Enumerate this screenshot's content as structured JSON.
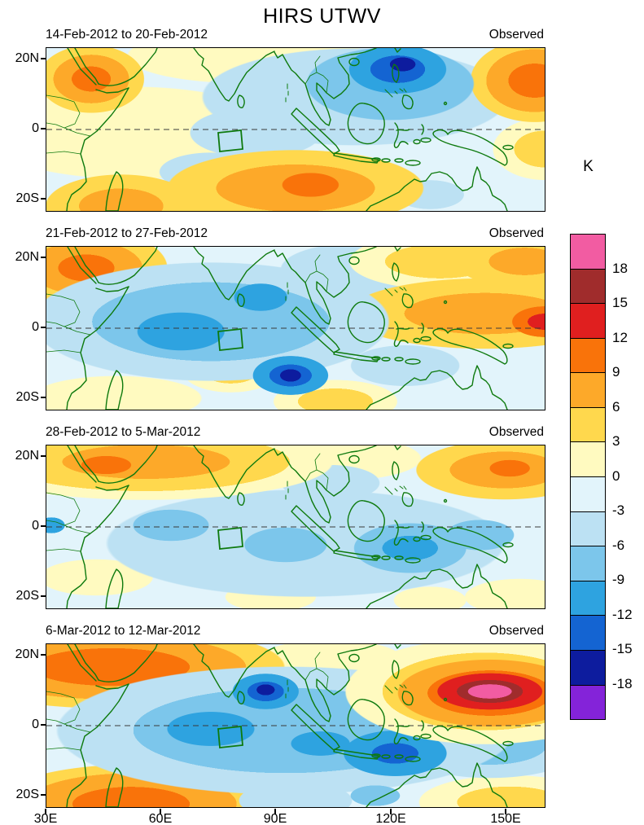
{
  "title": "HIRS UTWV",
  "colorbar": {
    "unit": "K",
    "tick_labels_top_to_bottom": [
      "18",
      "15",
      "12",
      "9",
      "6",
      "3",
      "0",
      "-3",
      "-6",
      "-9",
      "-12",
      "-15",
      "-18"
    ],
    "colors_top_to_bottom": [
      "#F25CA2",
      "#A02C2C",
      "#E01F1F",
      "#F9730A",
      "#FDA929",
      "#FFD84D",
      "#FFFAC0",
      "#E2F4FB",
      "#BCE1F3",
      "#7CC6EB",
      "#2EA3E0",
      "#1464D2",
      "#0D1C9E",
      "#8423D9"
    ]
  },
  "chart_data": {
    "type": "heatmap",
    "subtype": "filled_contour_anomaly_maps",
    "title": "HIRS UTWV",
    "units": "K",
    "contour_interval": 3,
    "contour_levels": [
      -18,
      -15,
      -12,
      -9,
      -6,
      -3,
      0,
      3,
      6,
      9,
      12,
      15,
      18
    ],
    "legend_position": "right",
    "grid": false,
    "x_axis": {
      "tick_labels": [
        "30E",
        "60E",
        "90E",
        "120E",
        "150E"
      ],
      "range_lon_east": [
        30,
        160
      ]
    },
    "y_axis": {
      "tick_labels": [
        "20N",
        "0",
        "20S"
      ],
      "range_lat": [
        -23,
        23
      ]
    },
    "panels": [
      {
        "date_range": "14-Feb-2012 to 20-Feb-2012",
        "source": "Observed",
        "features": [
          {
            "region": "Philippines / 110-130E, 5-20N",
            "sign": "negative",
            "peak_K": -15
          },
          {
            "region": "NW Arabian Sea-Horn of Africa / 35-50E, 10-20N",
            "sign": "positive",
            "peak_K": 9
          },
          {
            "region": "southern Indian Ocean band / 80-115E, 10-20S",
            "sign": "positive",
            "peak_K": 9
          },
          {
            "region": "far western Pacific / 150-160E, 5-20N",
            "sign": "positive",
            "peak_K": 9
          },
          {
            "region": "SW Indian Ocean / 40-60E, 18-23S",
            "sign": "positive",
            "peak_K": 6
          }
        ]
      },
      {
        "date_range": "21-Feb-2012 to 27-Feb-2012",
        "source": "Observed",
        "features": [
          {
            "region": "central Indian Ocean / 45-95E, 10S-10N",
            "sign": "negative",
            "peak_K": -9
          },
          {
            "region": "SE Indian Ocean spot / ~92E, 13S",
            "sign": "negative",
            "peak_K": -15
          },
          {
            "region": "NW sector / 30-55E, 5-20N",
            "sign": "positive",
            "peak_K": 9
          },
          {
            "region": "western Pacific near equator / 125-160E, 0-10N",
            "sign": "positive",
            "peak_K": 12
          }
        ]
      },
      {
        "date_range": "28-Feb-2012 to 5-Mar-2012",
        "source": "Observed",
        "features": [
          {
            "region": "northern band / 30-80E, 10-20N",
            "sign": "positive",
            "peak_K": 9
          },
          {
            "region": "NW Pacific / 140-160E, 10-20N",
            "sign": "positive",
            "peak_K": 9
          },
          {
            "region": "broad equatorial and southern Indian Ocean-Maritime Continent",
            "sign": "negative",
            "peak_K": -9
          },
          {
            "region": "African coast at equator / 30-35E",
            "sign": "negative",
            "peak_K": -9
          }
        ]
      },
      {
        "date_range": "6-Mar-2012 to 12-Mar-2012",
        "source": "Observed",
        "features": [
          {
            "region": "western Pacific / 135-160E, 5-18N",
            "sign": "positive",
            "peak_K": 21
          },
          {
            "region": "Bay of Bengal spot / ~87E, 10N",
            "sign": "negative",
            "peak_K": -15
          },
          {
            "region": "broad central Indian Ocean / 50-140E, 15S-5N",
            "sign": "negative",
            "peak_K": -12
          },
          {
            "region": "NW band / 30-75E, 5-20N",
            "sign": "positive",
            "peak_K": 9
          },
          {
            "region": "SW Indian Ocean / 35-75E, 15-23S",
            "sign": "positive",
            "peak_K": 9
          }
        ]
      }
    ],
    "annotations": [
      "dashed horizontal line at the equator in each panel",
      "green outlined reference box near 75-80E, 0-6S in each panel",
      "green coastlines and country borders"
    ]
  }
}
